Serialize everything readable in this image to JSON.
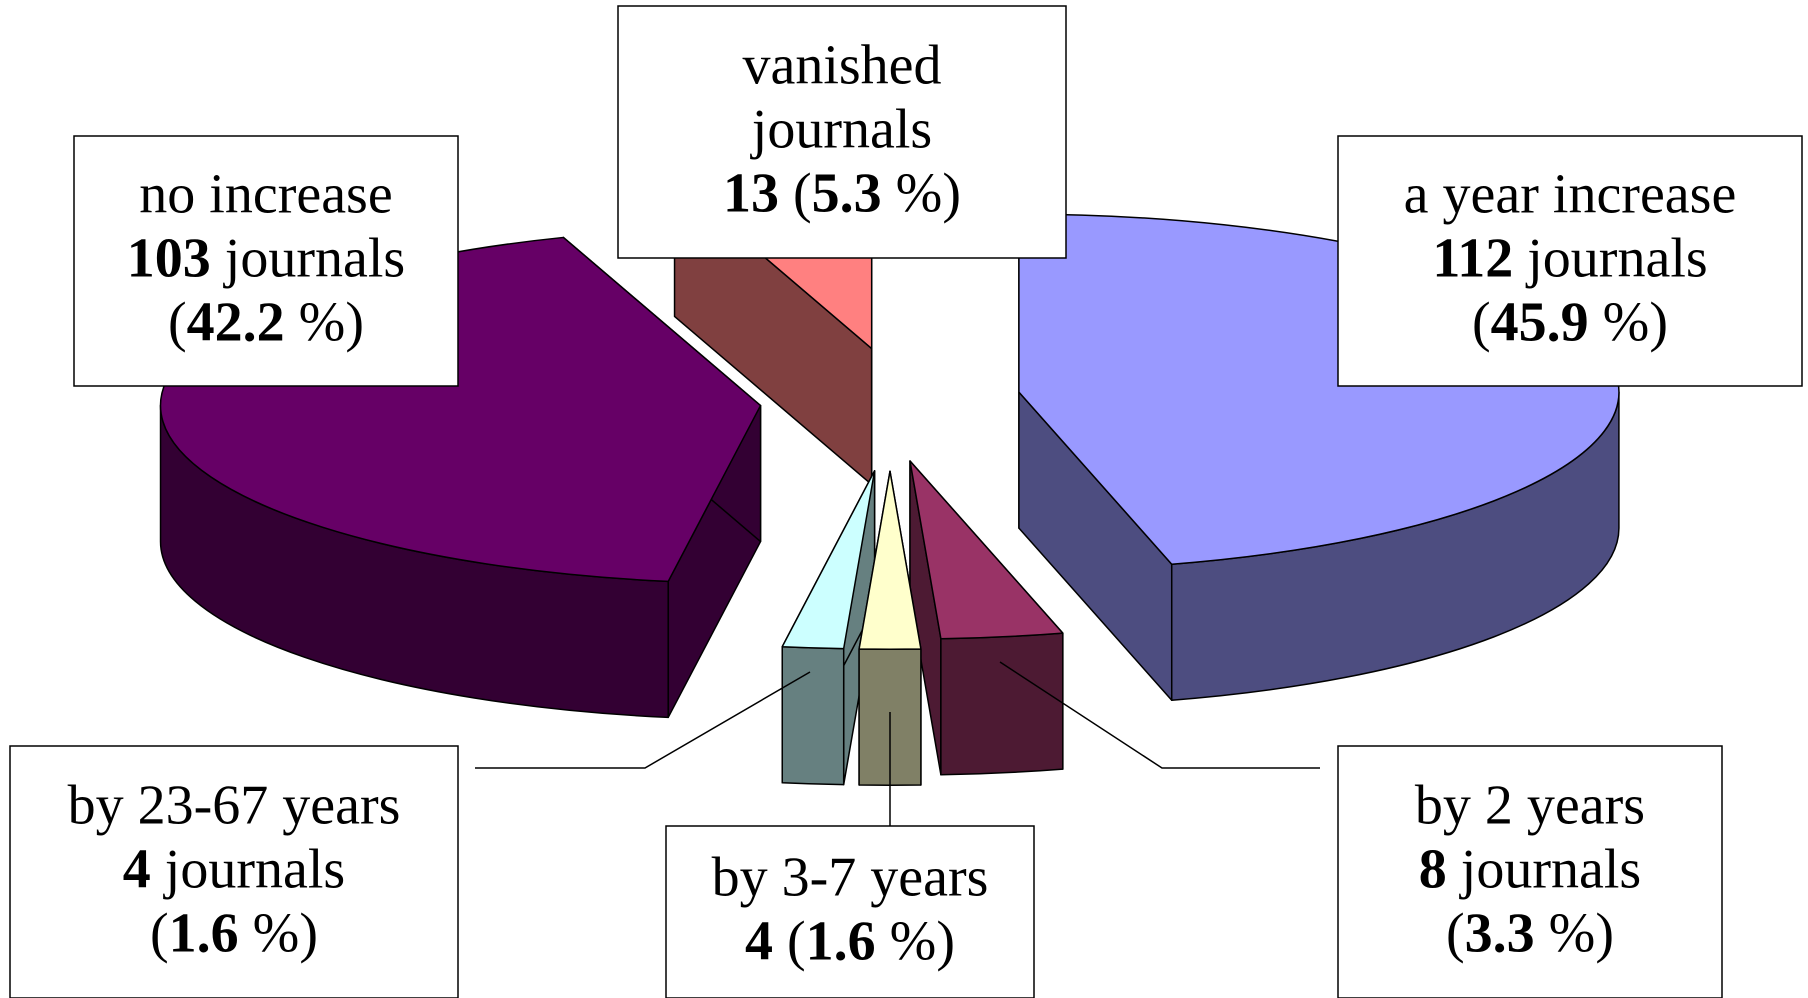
{
  "chart_data": {
    "type": "pie",
    "style": "3d-exploded",
    "slices": [
      {
        "key": "a_year_increase",
        "label": "a year increase",
        "count": 112,
        "count_suffix": " journals",
        "percent": 45.9,
        "color": "#9999ff",
        "side_color": "#4d4d80"
      },
      {
        "key": "by_2_years",
        "label": "by 2 years",
        "count": 8,
        "count_suffix": " journals",
        "percent": 3.3,
        "color": "#993366",
        "side_color": "#4d1a33"
      },
      {
        "key": "by_3_7_years",
        "label": "by 3-7 years",
        "count": 4,
        "count_suffix": "",
        "percent": 1.6,
        "color": "#ffffcc",
        "side_color": "#808066"
      },
      {
        "key": "by_23_67_years",
        "label": "by 23-67 years",
        "count": 4,
        "count_suffix": " journals",
        "percent": 1.6,
        "color": "#ccffff",
        "side_color": "#668080"
      },
      {
        "key": "no_increase",
        "label": "no increase",
        "count": 103,
        "count_suffix": " journals",
        "percent": 42.2,
        "color": "#660066",
        "side_color": "#330033"
      },
      {
        "key": "vanished_journals",
        "label": "vanished journals",
        "count": 13,
        "count_suffix": "",
        "percent": 5.3,
        "color": "#ff8080",
        "side_color": "#804040"
      }
    ],
    "percent_suffix": " %",
    "legend": "none",
    "data_labels": "boxed callouts"
  }
}
